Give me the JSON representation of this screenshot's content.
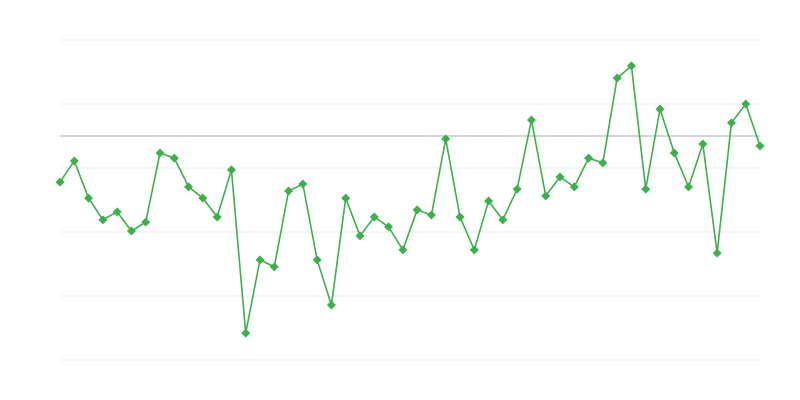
{
  "chart_data": {
    "type": "line",
    "categories": [
      null,
      null,
      null,
      null,
      null,
      null,
      null,
      null,
      null,
      null,
      null,
      null,
      null,
      null,
      null,
      null,
      null,
      null,
      null,
      null,
      null,
      null,
      null,
      null,
      null,
      null,
      null,
      null,
      null,
      null,
      null,
      null,
      null,
      null,
      null,
      null,
      null,
      null,
      null,
      null,
      null,
      null,
      null,
      null,
      null,
      null,
      null,
      null,
      null,
      null
    ],
    "values": [
      55.6,
      62.2,
      50.6,
      43.8,
      46.3,
      40.3,
      43.1,
      64.7,
      63.1,
      54.1,
      50.6,
      44.7,
      59.4,
      8.4,
      31.3,
      29.1,
      52.8,
      55.0,
      31.3,
      17.2,
      50.6,
      38.8,
      44.7,
      41.6,
      34.4,
      46.9,
      45.3,
      69.1,
      44.7,
      34.4,
      49.7,
      43.8,
      53.4,
      75.0,
      51.3,
      57.2,
      54.1,
      63.1,
      61.6,
      88.1,
      91.9,
      53.4,
      78.4,
      64.7,
      54.1,
      67.5,
      33.4,
      74.1,
      80.0,
      66.9
    ],
    "color": "#3cb04a",
    "ylim": [
      0,
      100
    ],
    "yticks": [
      0,
      20,
      40,
      60,
      80,
      100
    ],
    "grid": true,
    "reference_line": 70,
    "reference_color": "#aaaaaa"
  }
}
